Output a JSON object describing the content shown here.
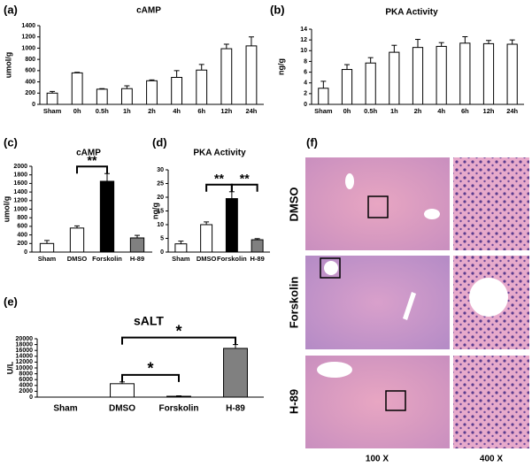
{
  "chart_data": [
    {
      "type": "bar",
      "panel_label": "(a)",
      "title": "cAMP",
      "ylabel": "umol/g",
      "categories": [
        "Sham",
        "0h",
        "0.5h",
        "1h",
        "2h",
        "4h",
        "6h",
        "12h",
        "24h"
      ],
      "values": [
        200,
        560,
        270,
        280,
        420,
        480,
        610,
        990,
        1040
      ],
      "errors": [
        30,
        10,
        10,
        50,
        15,
        120,
        100,
        80,
        160
      ],
      "colors": [
        "#ffffff",
        "#ffffff",
        "#ffffff",
        "#ffffff",
        "#ffffff",
        "#ffffff",
        "#ffffff",
        "#ffffff",
        "#ffffff"
      ],
      "ylim": [
        0,
        1400
      ],
      "yticks": [
        0,
        200,
        400,
        600,
        800,
        1000,
        1200,
        1400
      ]
    },
    {
      "type": "bar",
      "panel_label": "(b)",
      "title": "PKA Activity",
      "ylabel": "ng/g",
      "categories": [
        "Sham",
        "0h",
        "0.5h",
        "1h",
        "2h",
        "4h",
        "6h",
        "12h",
        "24h"
      ],
      "values": [
        3,
        6.5,
        7.7,
        9.7,
        10.6,
        10.8,
        11.4,
        11.3,
        11.2
      ],
      "errors": [
        1.3,
        0.9,
        1.0,
        1.3,
        1.5,
        0.7,
        1.2,
        0.6,
        0.8
      ],
      "colors": [
        "#ffffff",
        "#ffffff",
        "#ffffff",
        "#ffffff",
        "#ffffff",
        "#ffffff",
        "#ffffff",
        "#ffffff",
        "#ffffff"
      ],
      "ylim": [
        0,
        14
      ],
      "yticks": [
        0,
        2,
        4,
        6,
        8,
        10,
        12,
        14
      ]
    },
    {
      "type": "bar",
      "panel_label": "(c)",
      "title": "cAMP",
      "ylabel": "umol/g",
      "categories": [
        "Sham",
        "DMSO",
        "Forskolin",
        "H-89"
      ],
      "values": [
        200,
        560,
        1650,
        330
      ],
      "errors": [
        70,
        50,
        180,
        60
      ],
      "colors": [
        "#ffffff",
        "#ffffff",
        "#000000",
        "#808080"
      ],
      "ylim": [
        0,
        2000
      ],
      "yticks": [
        0,
        200,
        400,
        600,
        800,
        1000,
        1200,
        1400,
        1600,
        1800,
        2000
      ],
      "annotations": [
        {
          "text": "**",
          "between": [
            "DMSO",
            "Forskolin"
          ]
        }
      ]
    },
    {
      "type": "bar",
      "panel_label": "(d)",
      "title": "PKA Activity",
      "ylabel": "ng/g",
      "categories": [
        "Sham",
        "DMSO",
        "Forskolin",
        "H-89"
      ],
      "values": [
        3,
        10,
        19.5,
        4.5
      ],
      "errors": [
        1,
        1,
        2.5,
        0.4
      ],
      "colors": [
        "#ffffff",
        "#ffffff",
        "#000000",
        "#808080"
      ],
      "ylim": [
        0,
        30
      ],
      "yticks": [
        0,
        5,
        10,
        15,
        20,
        25,
        30
      ],
      "annotations": [
        {
          "text": "**",
          "between": [
            "DMSO",
            "Forskolin"
          ]
        },
        {
          "text": "**",
          "between": [
            "Forskolin",
            "H-89"
          ]
        }
      ]
    },
    {
      "type": "bar",
      "panel_label": "(e)",
      "title": "sALT",
      "ylabel": "U/L",
      "categories": [
        "Sham",
        "DMSO",
        "Forskolin",
        "H-89"
      ],
      "values": [
        0,
        4600,
        300,
        16700
      ],
      "errors": [
        0,
        600,
        150,
        1300
      ],
      "colors": [
        "#ffffff",
        "#ffffff",
        "#000000",
        "#808080"
      ],
      "ylim": [
        0,
        20000
      ],
      "yticks": [
        0,
        2000,
        4000,
        6000,
        8000,
        10000,
        12000,
        14000,
        16000,
        18000,
        20000
      ],
      "annotations": [
        {
          "text": "*",
          "between": [
            "DMSO",
            "Forskolin"
          ]
        },
        {
          "text": "*",
          "between": [
            "DMSO",
            "H-89"
          ]
        }
      ]
    }
  ],
  "histology": {
    "panel_label": "(f)",
    "rows": [
      "DMSO",
      "Forskolin",
      "H-89"
    ],
    "columns": [
      "100 X",
      "400 X"
    ]
  }
}
